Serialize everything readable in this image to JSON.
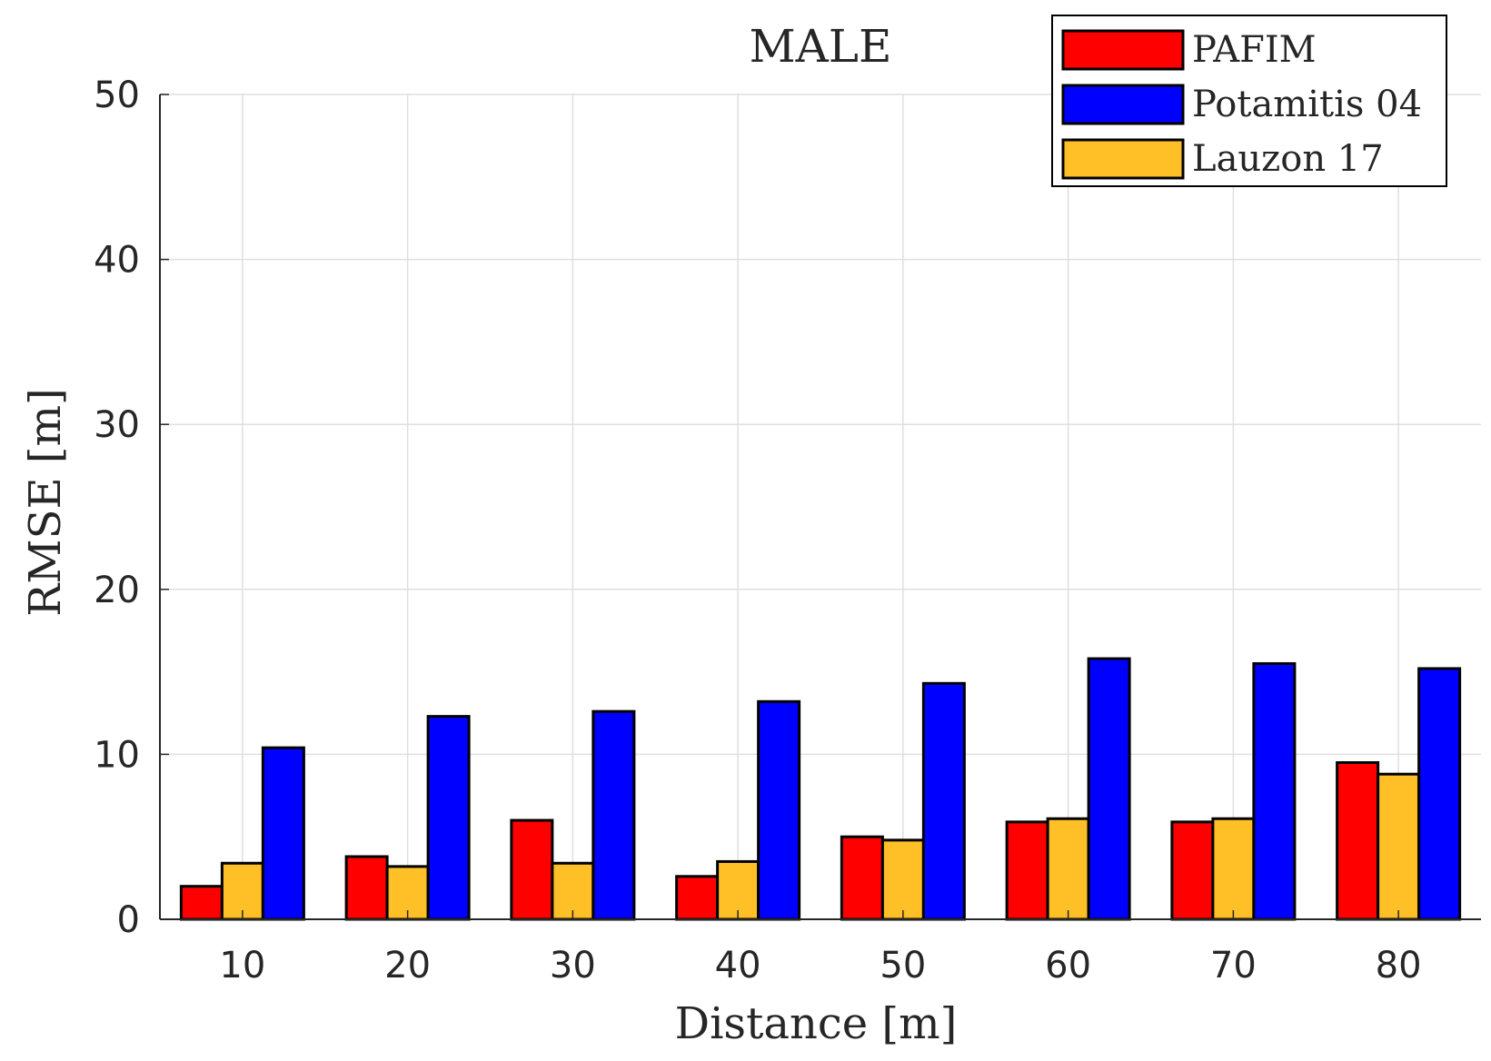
{
  "chart_data": {
    "type": "bar",
    "title": "MALE",
    "xlabel": "Distance [m]",
    "ylabel": "RMSE [m]",
    "categories": [
      "10",
      "20",
      "30",
      "40",
      "50",
      "60",
      "70",
      "80"
    ],
    "ylim": [
      0,
      50
    ],
    "yticks": [
      "0",
      "10",
      "20",
      "30",
      "40",
      "50"
    ],
    "grid": true,
    "legend_position": "top-right",
    "series": [
      {
        "name": "PAFIM",
        "color": "#ff0000",
        "values": [
          2.0,
          3.8,
          6.0,
          2.6,
          5.0,
          5.9,
          5.9,
          9.5
        ]
      },
      {
        "name": "Lauzon 17",
        "color": "#ffbf26",
        "values": [
          3.4,
          3.2,
          3.4,
          3.5,
          4.8,
          6.1,
          6.1,
          8.8
        ]
      },
      {
        "name": "Potamitis 04",
        "color": "#0000ff",
        "values": [
          10.4,
          12.3,
          12.6,
          13.2,
          14.3,
          15.8,
          15.5,
          15.2
        ]
      }
    ],
    "legend_order": [
      "PAFIM",
      "Potamitis 04",
      "Lauzon 17"
    ]
  }
}
